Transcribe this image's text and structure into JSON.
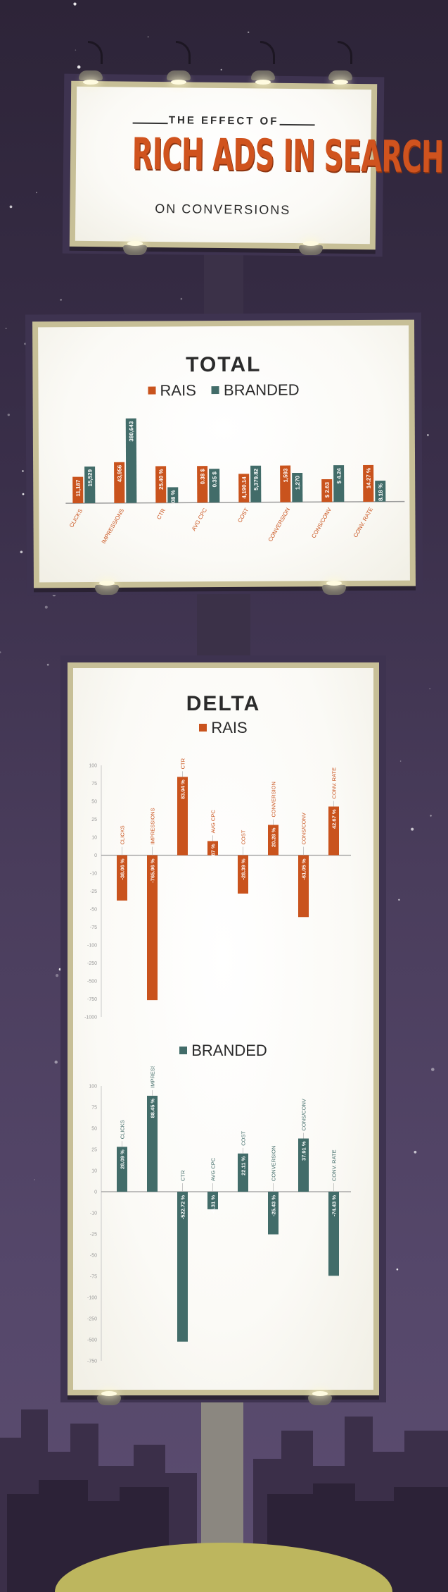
{
  "title": {
    "line1": "THE EFFECT OF",
    "main": "RICH ADS IN SEARCH",
    "line3": "ON CONVERSIONS"
  },
  "colors": {
    "rais": "#c9531d",
    "branded": "#426c69",
    "title_orange": "#d0531e",
    "text_dark": "#2b2b2b"
  },
  "chart_data": [
    {
      "type": "bar",
      "title": "TOTAL",
      "categories": [
        "CLICKS",
        "IMPRESSIONS",
        "CTR",
        "AVG CPC",
        "COST",
        "CONVERSION",
        "CONS/CONV",
        "CONV. RATE"
      ],
      "series": [
        {
          "name": "RAIS",
          "values": [
            11187,
            43956,
            25.4,
            0.38,
            4190.14,
            1593,
            2.63,
            14.27
          ],
          "labels": [
            "11,187",
            "43,956",
            "25.40 %",
            "0.38 $",
            "4,190.14",
            "1,593",
            "$ 2.63",
            "14.27 %"
          ]
        },
        {
          "name": "BRANDED",
          "values": [
            15529,
            380643,
            4.08,
            0.35,
            5379.82,
            1270,
            4.24,
            8.18
          ],
          "labels": [
            "15,529",
            "380,643",
            "4.08 %",
            "0.35 $",
            "5,379.82",
            "1,270",
            "$ 4.24",
            "8.18 %"
          ]
        }
      ],
      "legend": "top"
    },
    {
      "type": "bar",
      "title": "DELTA",
      "legend": "top",
      "categories": [
        "CLICKS",
        "IMPRESSIONS",
        "CTR",
        "AVG CPC",
        "COST",
        "CONVERSION",
        "CONS/CONV",
        "CONV. RATE"
      ],
      "series": [
        {
          "name": "RAIS",
          "values": [
            -38.06,
            -765.96,
            83.94,
            7.87,
            -28.39,
            20.28,
            -61.05,
            42.67
          ],
          "labels": [
            "-38.06 %",
            "-765.96 %",
            "83.94 %",
            "7.87 %",
            "-28.39 %",
            "20.28 %",
            "-61.05 %",
            "42.67 %"
          ]
        }
      ],
      "yticks": [
        "100",
        "75",
        "50",
        "25",
        "10",
        "0",
        "-10",
        "-25",
        "-50",
        "-75",
        "-100",
        "-250",
        "-500",
        "-750",
        "-1000"
      ]
    },
    {
      "type": "bar",
      "title": "",
      "legend": "top",
      "categories": [
        "CLICKS",
        "IMPRESSIONS",
        "CTR",
        "AVG CPC",
        "COST",
        "CONVERSION",
        "CONS/CONV",
        "CONV. RATE"
      ],
      "series": [
        {
          "name": "BRANDED",
          "values": [
            28.09,
            88.45,
            -522.72,
            -8.31,
            22.11,
            -25.43,
            37.91,
            -74.43
          ],
          "labels": [
            "28.09 %",
            "88.45 %",
            "-522.72 %",
            "-8.31 %",
            "22.11 %",
            "-25.43 %",
            "37.91 %",
            "-74.43 %"
          ]
        }
      ],
      "yticks": [
        "100",
        "75",
        "50",
        "25",
        "10",
        "0",
        "-10",
        "-25",
        "-50",
        "-75",
        "-100",
        "-250",
        "-500",
        "-750"
      ]
    }
  ]
}
